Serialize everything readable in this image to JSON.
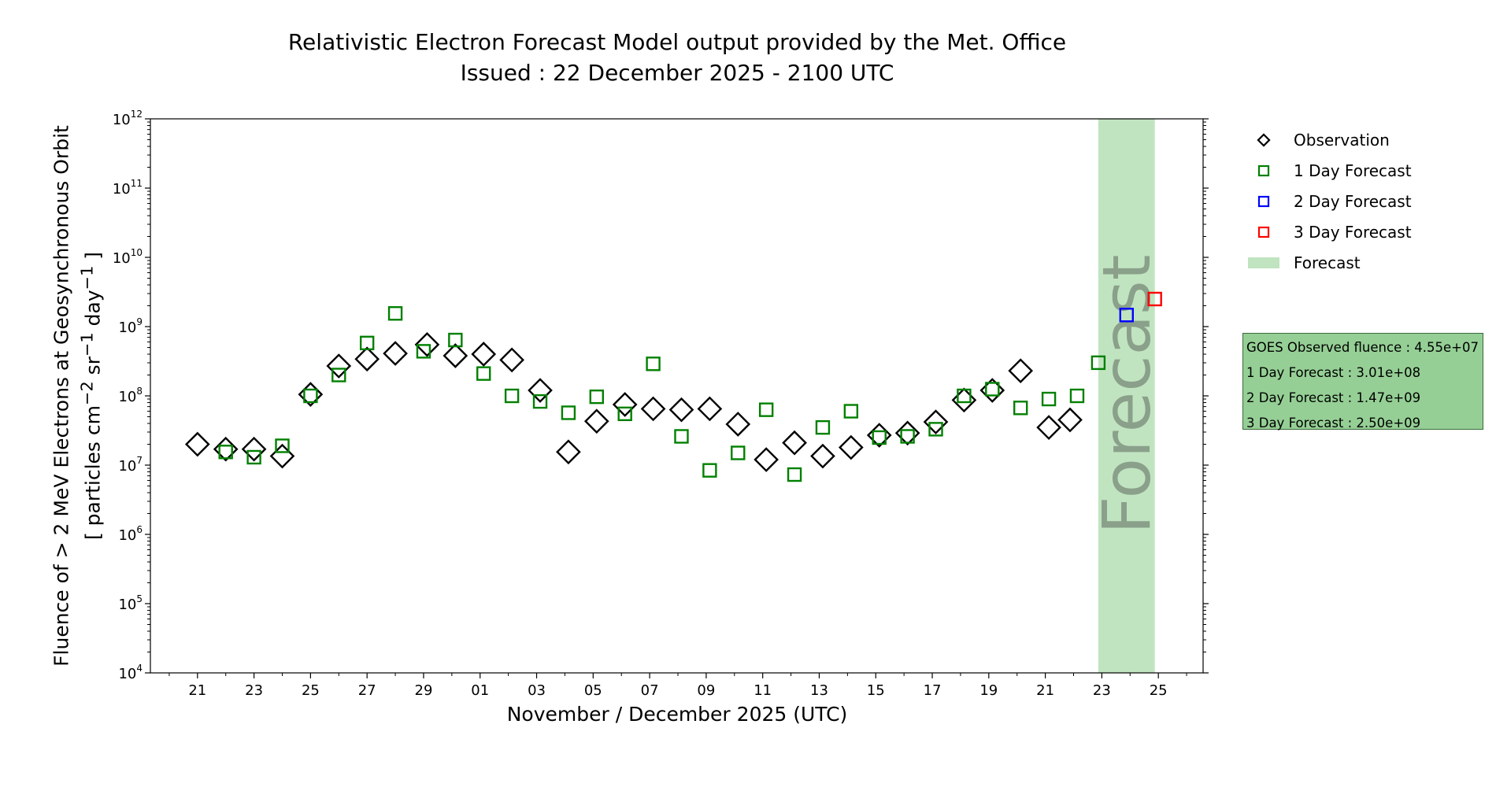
{
  "title": "Relativistic Electron Forecast Model output provided by the Met. Office",
  "subtitle": "Issued : 22 December 2025 - 2100 UTC",
  "chart_data": {
    "type": "scatter",
    "xlabel": "November / December 2025 (UTC)",
    "ylabel_line1": "Fluence of > 2 MeV Electrons at Geosynchronous Orbit",
    "ylabel_line2_parts": [
      "[ particles cm",
      "−2",
      " sr",
      "−1",
      " day",
      "−1",
      " ]"
    ],
    "yscale": "log",
    "ylim": [
      10000,
      1000000000000
    ],
    "y_tick_exponents": [
      4,
      5,
      6,
      7,
      8,
      9,
      10,
      11,
      12
    ],
    "xlim": [
      "2025-11-19T08:00",
      "2025-12-26T14:00"
    ],
    "x_tick_dates": [
      "2025-11-21",
      "2025-11-23",
      "2025-11-25",
      "2025-11-27",
      "2025-11-29",
      "2025-12-01",
      "2025-12-03",
      "2025-12-05",
      "2025-12-07",
      "2025-12-09",
      "2025-12-11",
      "2025-12-13",
      "2025-12-15",
      "2025-12-17",
      "2025-12-19",
      "2025-12-21",
      "2025-12-23",
      "2025-12-25"
    ],
    "x_tick_labels": [
      "21",
      "23",
      "25",
      "27",
      "29",
      "01",
      "03",
      "05",
      "07",
      "09",
      "11",
      "13",
      "15",
      "17",
      "19",
      "21",
      "23",
      "25"
    ],
    "forecast_band": [
      "2025-12-22T21:00",
      "2025-12-24T21:00"
    ],
    "forecast_band_label": "Forecast",
    "series": [
      {
        "name": "Observation",
        "marker": "diamond",
        "color": "#000000",
        "points": [
          [
            "2025-11-21T00:00",
            20000000
          ],
          [
            "2025-11-22T00:00",
            17000000
          ],
          [
            "2025-11-23T00:00",
            17000000
          ],
          [
            "2025-11-24T00:00",
            13500000
          ],
          [
            "2025-11-25T00:00",
            105000000
          ],
          [
            "2025-11-26T00:00",
            270000000
          ],
          [
            "2025-11-27T00:00",
            340000000
          ],
          [
            "2025-11-28T00:00",
            410000000
          ],
          [
            "2025-11-29T03:00",
            550000000
          ],
          [
            "2025-11-30T03:00",
            380000000
          ],
          [
            "2025-12-01T03:00",
            400000000
          ],
          [
            "2025-12-02T03:00",
            330000000
          ],
          [
            "2025-12-03T03:00",
            120000000
          ],
          [
            "2025-12-04T03:00",
            15500000
          ],
          [
            "2025-12-05T03:00",
            43000000
          ],
          [
            "2025-12-06T03:00",
            75000000
          ],
          [
            "2025-12-07T03:00",
            65000000
          ],
          [
            "2025-12-08T03:00",
            63000000
          ],
          [
            "2025-12-09T03:00",
            65000000
          ],
          [
            "2025-12-10T03:00",
            39000000
          ],
          [
            "2025-12-11T03:00",
            12000000
          ],
          [
            "2025-12-12T03:00",
            21000000
          ],
          [
            "2025-12-13T03:00",
            13500000
          ],
          [
            "2025-12-14T03:00",
            18000000
          ],
          [
            "2025-12-15T03:00",
            27000000
          ],
          [
            "2025-12-16T03:00",
            29000000
          ],
          [
            "2025-12-17T03:00",
            42000000
          ],
          [
            "2025-12-18T03:00",
            87000000
          ],
          [
            "2025-12-19T03:00",
            120000000
          ],
          [
            "2025-12-20T03:00",
            230000000
          ],
          [
            "2025-12-21T03:00",
            35000000
          ],
          [
            "2025-12-21T21:00",
            45000000
          ]
        ]
      },
      {
        "name": "1 Day Forecast",
        "marker": "square",
        "color": "#008000",
        "points": [
          [
            "2025-11-22T00:00",
            15500000
          ],
          [
            "2025-11-23T00:00",
            13000000
          ],
          [
            "2025-11-24T00:00",
            19000000
          ],
          [
            "2025-11-25T00:00",
            100000000
          ],
          [
            "2025-11-26T00:00",
            200000000
          ],
          [
            "2025-11-27T00:00",
            580000000
          ],
          [
            "2025-11-28T00:00",
            1550000000
          ],
          [
            "2025-11-29T00:00",
            440000000
          ],
          [
            "2025-11-30T03:00",
            640000000
          ],
          [
            "2025-12-01T03:00",
            210000000
          ],
          [
            "2025-12-02T03:00",
            100000000
          ],
          [
            "2025-12-03T03:00",
            83000000
          ],
          [
            "2025-12-04T03:00",
            57000000
          ],
          [
            "2025-12-05T03:00",
            97000000
          ],
          [
            "2025-12-06T03:00",
            55000000
          ],
          [
            "2025-12-07T03:00",
            290000000
          ],
          [
            "2025-12-08T03:00",
            26000000
          ],
          [
            "2025-12-09T03:00",
            8400000
          ],
          [
            "2025-12-10T03:00",
            15000000
          ],
          [
            "2025-12-11T03:00",
            63000000
          ],
          [
            "2025-12-12T03:00",
            7300000
          ],
          [
            "2025-12-13T03:00",
            35000000
          ],
          [
            "2025-12-14T03:00",
            60000000
          ],
          [
            "2025-12-15T03:00",
            25000000
          ],
          [
            "2025-12-16T03:00",
            26000000
          ],
          [
            "2025-12-17T03:00",
            33000000
          ],
          [
            "2025-12-18T03:00",
            100000000
          ],
          [
            "2025-12-19T03:00",
            125000000
          ],
          [
            "2025-12-20T03:00",
            67000000
          ],
          [
            "2025-12-21T03:00",
            90000000
          ],
          [
            "2025-12-22T03:00",
            100000000
          ],
          [
            "2025-12-22T21:00",
            301000000
          ]
        ]
      },
      {
        "name": "2 Day Forecast",
        "marker": "square",
        "color": "#0000ff",
        "points": [
          [
            "2025-12-23T21:00",
            1470000000
          ]
        ]
      },
      {
        "name": "3 Day Forecast",
        "marker": "square",
        "color": "#ff0000",
        "points": [
          [
            "2025-12-24T21:00",
            2500000000
          ]
        ]
      }
    ],
    "legend": [
      {
        "label": "Observation",
        "marker": "diamond",
        "color": "#000000"
      },
      {
        "label": "1 Day Forecast",
        "marker": "square",
        "color": "#008000"
      },
      {
        "label": "2 Day Forecast",
        "marker": "square",
        "color": "#0000ff"
      },
      {
        "label": "3 Day Forecast",
        "marker": "square",
        "color": "#ff0000"
      },
      {
        "label": "Forecast",
        "marker": "band",
        "color": "#c0e4c0"
      }
    ],
    "legend_position": "right",
    "annotation_box": [
      "GOES Observed fluence : 4.55e+07",
      "1 Day Forecast : 3.01e+08",
      "2 Day Forecast : 1.47e+09",
      "3 Day Forecast : 2.50e+09"
    ],
    "band_color": "#c0e4c0",
    "band_text_color": "#8aa08a",
    "grid": false
  }
}
